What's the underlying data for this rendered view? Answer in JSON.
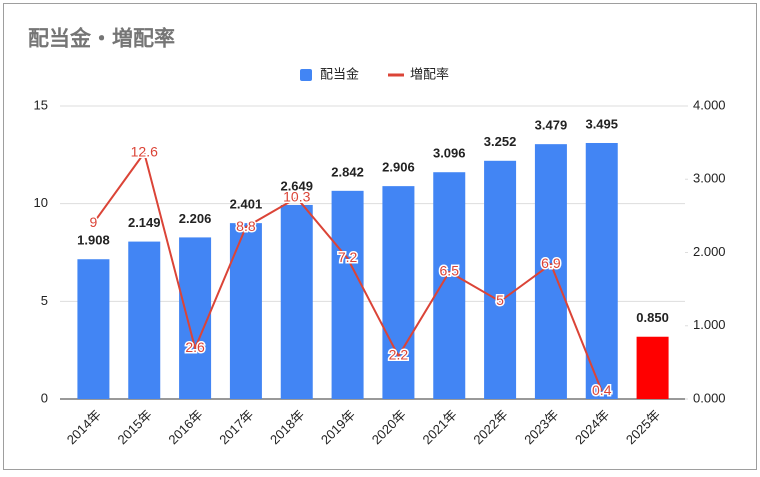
{
  "chart_data": {
    "type": "combo",
    "title": "配当金・増配率",
    "categories": [
      "2014年",
      "2015年",
      "2016年",
      "2017年",
      "2018年",
      "2019年",
      "2020年",
      "2021年",
      "2022年",
      "2023年",
      "2024年",
      "2025年"
    ],
    "series": [
      {
        "name": "配当金",
        "type": "bar",
        "axis": "y2",
        "color": "#4285f4",
        "colors": [
          "#4285f4",
          "#4285f4",
          "#4285f4",
          "#4285f4",
          "#4285f4",
          "#4285f4",
          "#4285f4",
          "#4285f4",
          "#4285f4",
          "#4285f4",
          "#4285f4",
          "#ff0000"
        ],
        "values": [
          1.908,
          2.149,
          2.206,
          2.401,
          2.649,
          2.842,
          2.906,
          3.096,
          3.252,
          3.479,
          3.495,
          0.85
        ],
        "value_labels": [
          "1.908",
          "2.149",
          "2.206",
          "2.401",
          "2.649",
          "2.842",
          "2.906",
          "3.096",
          "3.252",
          "3.479",
          "3.495",
          "0.850"
        ]
      },
      {
        "name": "増配率",
        "type": "line",
        "axis": "y",
        "color": "#db4437",
        "values": [
          9,
          12.6,
          2.6,
          8.8,
          10.3,
          7.2,
          2.2,
          6.5,
          5,
          6.9,
          0.4,
          null
        ]
      }
    ],
    "ylim": [
      0,
      15
    ],
    "yticks": [
      0,
      5,
      10,
      15
    ],
    "y2lim": [
      0,
      4
    ],
    "y2ticks": [
      {
        "value": 0,
        "label": "0.000"
      },
      {
        "value": 1,
        "label": "1.000"
      },
      {
        "value": 2,
        "label": "2.000"
      },
      {
        "value": 3,
        "label": "3.000"
      },
      {
        "value": 4,
        "label": "4.000"
      }
    ],
    "grid": true,
    "legend": "top"
  }
}
